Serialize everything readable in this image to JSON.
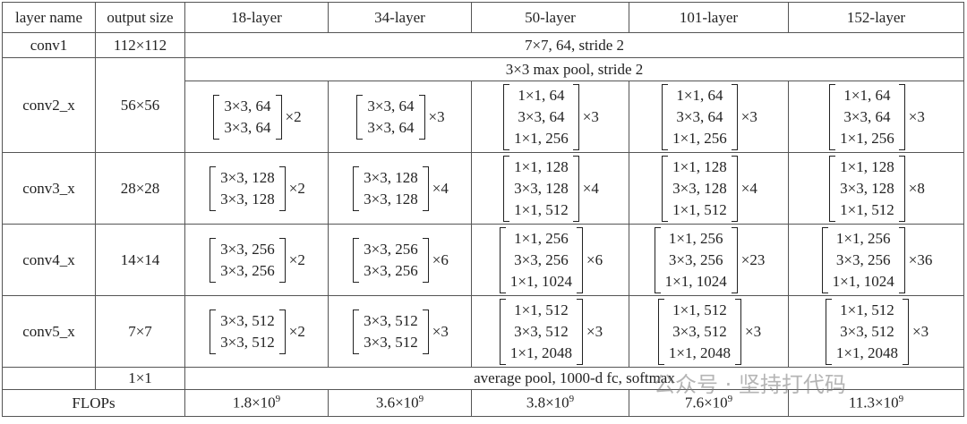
{
  "table": {
    "header": [
      "layer name",
      "output size",
      "18-layer",
      "34-layer",
      "50-layer",
      "101-layer",
      "152-layer"
    ],
    "rows": [
      {
        "name": "conv1",
        "size": "112×112",
        "span": "7×7, 64, stride 2"
      },
      {
        "name": "conv2_x",
        "size": "56×56",
        "pool": "3×3 max pool, stride 2",
        "blocks": [
          {
            "lines": [
              "3×3, 64",
              "3×3, 64"
            ],
            "mult": "×2"
          },
          {
            "lines": [
              "3×3, 64",
              "3×3, 64"
            ],
            "mult": "×3"
          },
          {
            "lines": [
              "1×1, 64",
              "3×3, 64",
              "1×1, 256"
            ],
            "mult": "×3"
          },
          {
            "lines": [
              "1×1, 64",
              "3×3, 64",
              "1×1, 256"
            ],
            "mult": "×3"
          },
          {
            "lines": [
              "1×1, 64",
              "3×3, 64",
              "1×1, 256"
            ],
            "mult": "×3"
          }
        ]
      },
      {
        "name": "conv3_x",
        "size": "28×28",
        "blocks": [
          {
            "lines": [
              "3×3, 128",
              "3×3, 128"
            ],
            "mult": "×2"
          },
          {
            "lines": [
              "3×3, 128",
              "3×3, 128"
            ],
            "mult": "×4"
          },
          {
            "lines": [
              "1×1, 128",
              "3×3, 128",
              "1×1, 512"
            ],
            "mult": "×4"
          },
          {
            "lines": [
              "1×1, 128",
              "3×3, 128",
              "1×1, 512"
            ],
            "mult": "×4"
          },
          {
            "lines": [
              "1×1, 128",
              "3×3, 128",
              "1×1, 512"
            ],
            "mult": "×8"
          }
        ]
      },
      {
        "name": "conv4_x",
        "size": "14×14",
        "blocks": [
          {
            "lines": [
              "3×3, 256",
              "3×3, 256"
            ],
            "mult": "×2"
          },
          {
            "lines": [
              "3×3, 256",
              "3×3, 256"
            ],
            "mult": "×6"
          },
          {
            "lines": [
              "1×1, 256",
              "3×3, 256",
              "1×1, 1024"
            ],
            "mult": "×6"
          },
          {
            "lines": [
              "1×1, 256",
              "3×3, 256",
              "1×1, 1024"
            ],
            "mult": "×23"
          },
          {
            "lines": [
              "1×1, 256",
              "3×3, 256",
              "1×1, 1024"
            ],
            "mult": "×36"
          }
        ]
      },
      {
        "name": "conv5_x",
        "size": "7×7",
        "blocks": [
          {
            "lines": [
              "3×3, 512",
              "3×3, 512"
            ],
            "mult": "×2"
          },
          {
            "lines": [
              "3×3, 512",
              "3×3, 512"
            ],
            "mult": "×3"
          },
          {
            "lines": [
              "1×1, 512",
              "3×3, 512",
              "1×1, 2048"
            ],
            "mult": "×3"
          },
          {
            "lines": [
              "1×1, 512",
              "3×3, 512",
              "1×1, 2048"
            ],
            "mult": "×3"
          },
          {
            "lines": [
              "1×1, 512",
              "3×3, 512",
              "1×1, 2048"
            ],
            "mult": "×3"
          }
        ]
      },
      {
        "size": "1×1",
        "span": "average pool, 1000-d fc, softmax"
      },
      {
        "name": "FLOPs",
        "flops": [
          {
            "base": "1.8×10",
            "exp": "9"
          },
          {
            "base": "3.6×10",
            "exp": "9"
          },
          {
            "base": "3.8×10",
            "exp": "9"
          },
          {
            "base": "7.6×10",
            "exp": "9"
          },
          {
            "base": "11.3×10",
            "exp": "9"
          }
        ]
      }
    ]
  },
  "watermark": "公众号 · 坚持打代码"
}
